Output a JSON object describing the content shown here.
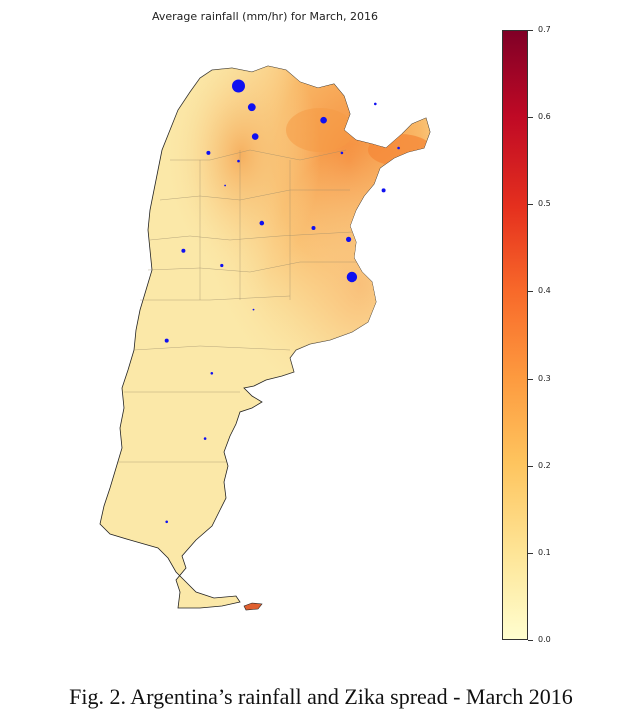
{
  "title": "Average rainfall (mm/hr) for March, 2016",
  "caption": "Fig. 2.  Argentina’s rainfall and Zika spread - March 2016",
  "colorbar": {
    "min": 0.0,
    "max": 0.7,
    "ticks": [
      "0.0",
      "0.1",
      "0.2",
      "0.3",
      "0.4",
      "0.5",
      "0.6",
      "0.7"
    ],
    "colors": [
      "#fffecf",
      "#fee597",
      "#fec45e",
      "#fd9a3f",
      "#f86a2a",
      "#e5301e",
      "#bf0925",
      "#800026"
    ]
  },
  "colors": {
    "map_base": "#fbe8a8",
    "map_wet": "#f8a04a",
    "marker": "#1010f0",
    "border": "#8a8a8a"
  },
  "chart_data": {
    "type": "scatter",
    "title": "Average rainfall (mm/hr) for March, 2016",
    "colorbar_range": [
      0.0,
      0.7
    ],
    "legend": "none",
    "grid": false,
    "markers": [
      {
        "lon": -65.2,
        "lat": -22.9,
        "size": 5
      },
      {
        "lon": -64.4,
        "lat": -24.2,
        "size": 3
      },
      {
        "lon": -64.2,
        "lat": -26.0,
        "size": 2.5
      },
      {
        "lon": -67.0,
        "lat": -27.0,
        "size": 1.5
      },
      {
        "lon": -65.2,
        "lat": -27.5,
        "size": 1
      },
      {
        "lon": -66.0,
        "lat": -29.0,
        "size": 0.7
      },
      {
        "lon": -59.0,
        "lat": -27.0,
        "size": 1
      },
      {
        "lon": -60.1,
        "lat": -25.0,
        "size": 2.5
      },
      {
        "lon": -57.0,
        "lat": -24.0,
        "size": 1
      },
      {
        "lon": -55.6,
        "lat": -26.7,
        "size": 1
      },
      {
        "lon": -56.5,
        "lat": -29.3,
        "size": 1.5
      },
      {
        "lon": -63.8,
        "lat": -31.3,
        "size": 1.8
      },
      {
        "lon": -60.7,
        "lat": -31.6,
        "size": 1.5
      },
      {
        "lon": -58.6,
        "lat": -32.3,
        "size": 2
      },
      {
        "lon": -68.5,
        "lat": -33.0,
        "size": 1.5
      },
      {
        "lon": -66.2,
        "lat": -33.9,
        "size": 1.2
      },
      {
        "lon": -58.4,
        "lat": -34.6,
        "size": 4
      },
      {
        "lon": -64.3,
        "lat": -36.6,
        "size": 0.7
      },
      {
        "lon": -69.5,
        "lat": -38.5,
        "size": 1.5
      },
      {
        "lon": -66.8,
        "lat": -40.5,
        "size": 1
      },
      {
        "lon": -67.2,
        "lat": -44.5,
        "size": 1
      },
      {
        "lon": -69.5,
        "lat": -49.6,
        "size": 1
      }
    ]
  }
}
